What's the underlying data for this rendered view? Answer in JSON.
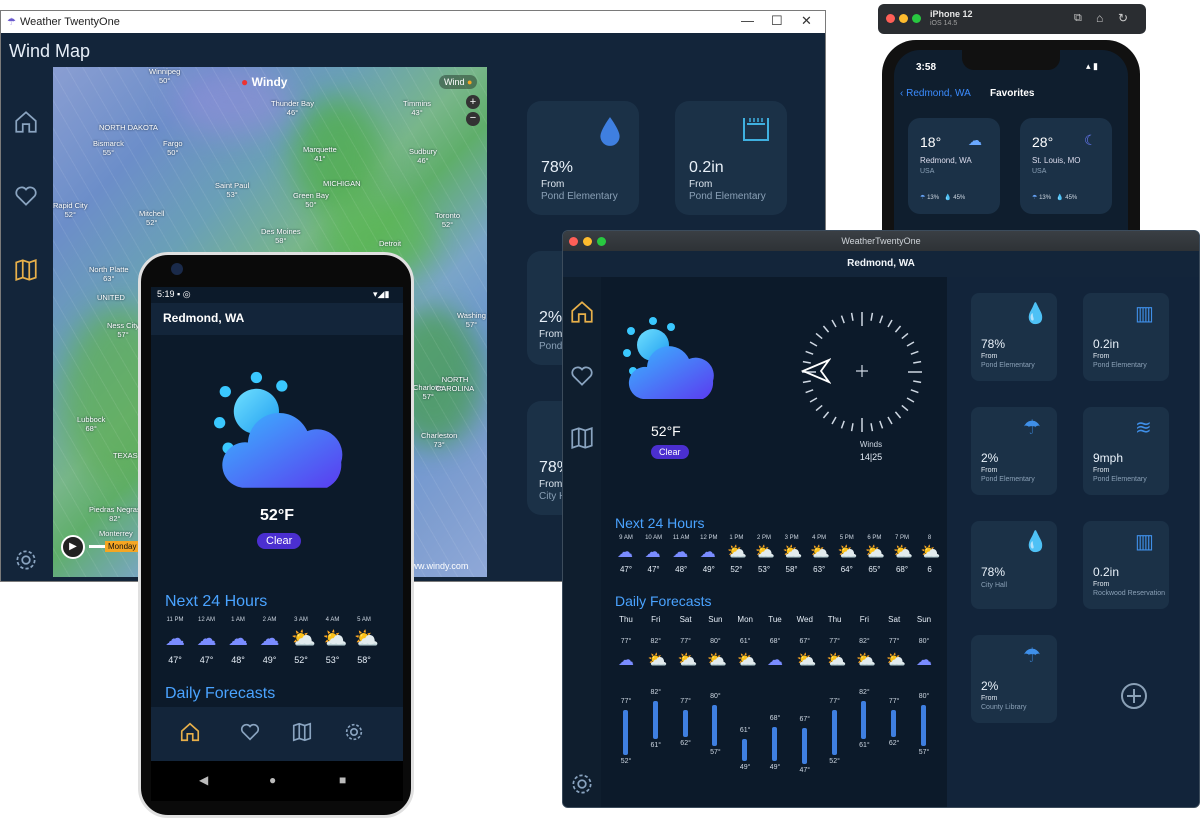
{
  "windows_app": {
    "title": "Weather TwentyOne",
    "header": "Wind Map",
    "map": {
      "brand": "Windy",
      "layer": "Wind",
      "footer": "www.windy.com",
      "playback": "Monday",
      "labels": [
        {
          "name": "Winnipeg",
          "val": "50°"
        },
        {
          "name": "Thunder Bay",
          "val": "46°"
        },
        {
          "name": "Timmins",
          "val": "43°"
        },
        {
          "name": "NORTH DAKOTA",
          "val": ""
        },
        {
          "name": "Bismarck",
          "val": "55°"
        },
        {
          "name": "Fargo",
          "val": "50°"
        },
        {
          "name": "Marquette",
          "val": "41°"
        },
        {
          "name": "Sudbury",
          "val": "46°"
        },
        {
          "name": "Saint Paul",
          "val": "53°"
        },
        {
          "name": "Green Bay",
          "val": "50°"
        },
        {
          "name": "MICHIGAN",
          "val": ""
        },
        {
          "name": "Rapid City",
          "val": "52°"
        },
        {
          "name": "Mitchell",
          "val": "52°"
        },
        {
          "name": "Des Moines",
          "val": "58°"
        },
        {
          "name": "Toronto",
          "val": "52°"
        },
        {
          "name": "Detroit",
          "val": ""
        },
        {
          "name": "North Platte",
          "val": "63°"
        },
        {
          "name": "UNITED",
          "val": ""
        },
        {
          "name": "Ness City",
          "val": "57°"
        },
        {
          "name": "Washing",
          "val": "57°"
        },
        {
          "name": "Lubbock",
          "val": "68°"
        },
        {
          "name": "TEXAS",
          "val": ""
        },
        {
          "name": "Charlotte",
          "val": "57°"
        },
        {
          "name": "NORTH CAROLINA",
          "val": ""
        },
        {
          "name": "Charleston",
          "val": "73°"
        },
        {
          "name": "Piedras Negras",
          "val": "82°"
        },
        {
          "name": "Monterrey",
          "val": ""
        }
      ]
    },
    "tiles": [
      {
        "value": "78%",
        "from": "From",
        "place": "Pond Elementary"
      },
      {
        "value": "0.2in",
        "from": "From",
        "place": "Pond Elementary"
      },
      {
        "value": "2%",
        "from": "From",
        "place": "Pond"
      },
      {
        "value": "78%",
        "from": "From",
        "place": "City H"
      }
    ]
  },
  "iphone": {
    "device_title": "iPhone 12",
    "device_os": "iOS 14.5",
    "time": "3:58",
    "back_label": "Redmond, WA",
    "title": "Favorites",
    "cities": [
      {
        "temp": "18°",
        "city": "Redmond, WA",
        "country": "USA",
        "rain": "13%",
        "hum": "45%"
      },
      {
        "temp": "28°",
        "city": "St. Louis, MO",
        "country": "USA",
        "rain": "13%",
        "hum": "45%"
      }
    ]
  },
  "mac_app": {
    "title": "WeatherTwentyOne",
    "location": "Redmond, WA",
    "temp": "52°F",
    "condition": "Clear",
    "winds_label": "Winds",
    "winds_value": "14|25",
    "next24_title": "Next 24 Hours",
    "hours": [
      {
        "t": "9 AM",
        "v": "47°"
      },
      {
        "t": "10 AM",
        "v": "47°"
      },
      {
        "t": "11 AM",
        "v": "48°"
      },
      {
        "t": "12 PM",
        "v": "49°"
      },
      {
        "t": "1 PM",
        "v": "52°"
      },
      {
        "t": "2 PM",
        "v": "53°"
      },
      {
        "t": "3 PM",
        "v": "58°"
      },
      {
        "t": "4 PM",
        "v": "63°"
      },
      {
        "t": "5 PM",
        "v": "64°"
      },
      {
        "t": "6 PM",
        "v": "65°"
      },
      {
        "t": "7 PM",
        "v": "68°"
      },
      {
        "t": "8",
        "v": "6"
      }
    ],
    "daily_title": "Daily Forecasts",
    "days": [
      {
        "d": "Thu",
        "hi": "77°",
        "lo": "52°"
      },
      {
        "d": "Fri",
        "hi": "82°",
        "lo": "61°"
      },
      {
        "d": "Sat",
        "hi": "77°",
        "lo": "62°"
      },
      {
        "d": "Sun",
        "hi": "80°",
        "lo": "57°"
      },
      {
        "d": "Mon",
        "hi": "61°",
        "lo": "49°"
      },
      {
        "d": "Tue",
        "hi": "68°",
        "lo": "49°"
      },
      {
        "d": "Wed",
        "hi": "67°",
        "lo": "47°"
      },
      {
        "d": "Thu",
        "hi": "77°",
        "lo": "52°"
      },
      {
        "d": "Fri",
        "hi": "82°",
        "lo": "61°"
      },
      {
        "d": "Sat",
        "hi": "77°",
        "lo": "62°"
      },
      {
        "d": "Sun",
        "hi": "80°",
        "lo": "57°"
      }
    ],
    "tiles": [
      {
        "value": "78%",
        "from": "From",
        "place": "Pond Elementary",
        "icon": "drop-icon"
      },
      {
        "value": "0.2in",
        "from": "From",
        "place": "Pond Elementary",
        "icon": "gauge-icon"
      },
      {
        "value": "2%",
        "from": "From",
        "place": "Pond Elementary",
        "icon": "umbrella-icon"
      },
      {
        "value": "9mph",
        "from": "From",
        "place": "Pond Elementary",
        "icon": "wind-icon"
      },
      {
        "value": "78%",
        "from": "",
        "place": "City Hall",
        "icon": "drop-icon"
      },
      {
        "value": "0.2in",
        "from": "From",
        "place": "Rockwood Reservation",
        "icon": "gauge-icon"
      },
      {
        "value": "2%",
        "from": "From",
        "place": "County Library",
        "icon": "umbrella-icon"
      }
    ]
  },
  "android": {
    "time": "5:19",
    "location": "Redmond, WA",
    "temp": "52°F",
    "condition": "Clear",
    "next24_title": "Next 24 Hours",
    "hours": [
      {
        "t": "11 PM",
        "v": "47°"
      },
      {
        "t": "12 AM",
        "v": "47°"
      },
      {
        "t": "1 AM",
        "v": "48°"
      },
      {
        "t": "2 AM",
        "v": "49°"
      },
      {
        "t": "3 AM",
        "v": "52°"
      },
      {
        "t": "4 AM",
        "v": "53°"
      },
      {
        "t": "5 AM",
        "v": "58°"
      }
    ],
    "daily_title": "Daily Forecasts"
  },
  "colors": {
    "accent": "#4aa3ff",
    "bg": "#0c1a2a",
    "tile": "#1b3147",
    "pill": "#4b2fd0",
    "nav_active": "#e8b04a"
  }
}
